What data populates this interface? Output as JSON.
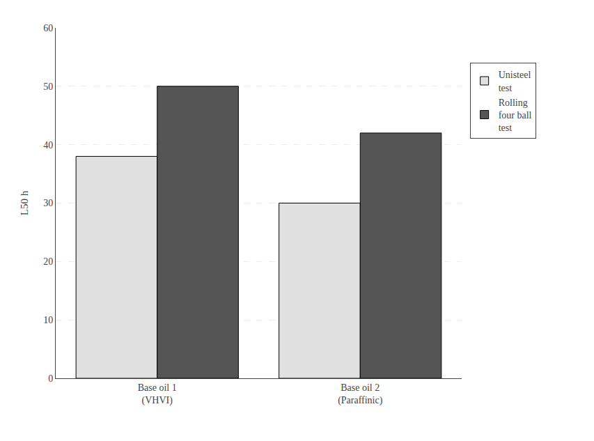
{
  "chart_data": {
    "type": "bar",
    "categories": [
      "Base oil 1\n(VHVI)",
      "Base oil 2\n(Paraffinic)"
    ],
    "series": [
      {
        "name": "Unisteel\ntest",
        "color": "#e0e0e0",
        "values": [
          38,
          30
        ]
      },
      {
        "name": "Rolling\nfour ball\ntest",
        "color": "#555555",
        "values": [
          50,
          42
        ]
      }
    ],
    "ylabel": "L50 h",
    "ylim": [
      0,
      60
    ],
    "yticks": [
      0,
      10,
      20,
      30,
      40,
      50,
      60
    ],
    "grid": true,
    "legend": "right"
  }
}
